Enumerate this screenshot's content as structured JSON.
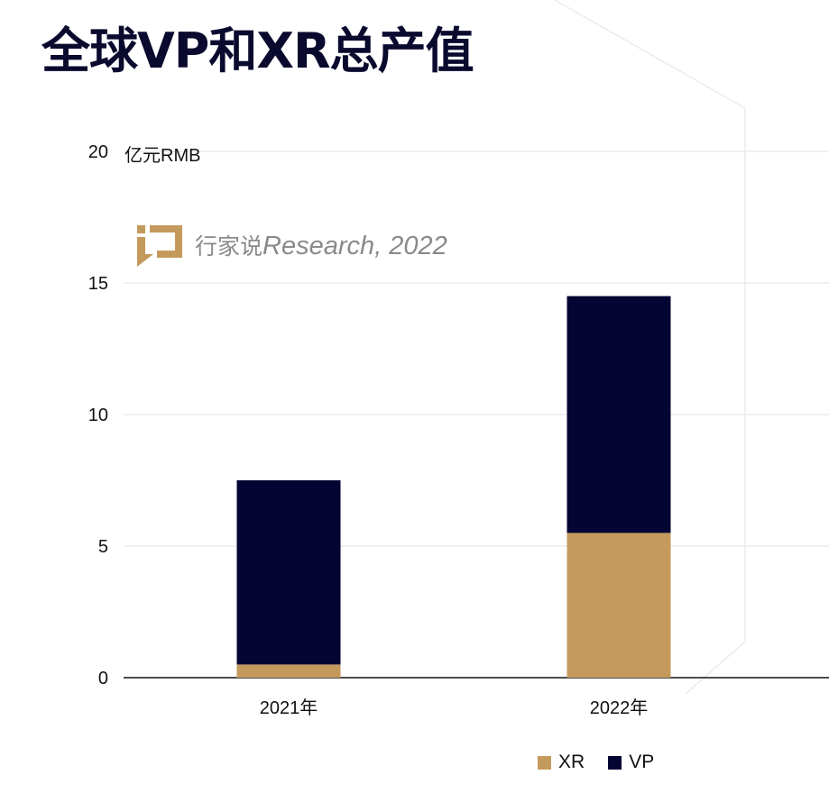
{
  "title": "全球VP和XR总产值",
  "watermark": {
    "cn": "行家说",
    "en": "Research, 2022"
  },
  "chart_data": {
    "type": "bar",
    "stacked": true,
    "title": "全球VP和XR总产值",
    "ylabel": "亿元RMB",
    "xlabel": "",
    "categories": [
      "2021年",
      "2022年"
    ],
    "series": [
      {
        "name": "XR",
        "values": [
          0.5,
          5.5
        ],
        "color": "#c49a5c"
      },
      {
        "name": "VP",
        "values": [
          7.0,
          9.0
        ],
        "color": "#050533"
      }
    ],
    "ylim": [
      0,
      20
    ],
    "yticks": [
      0,
      5,
      10,
      15,
      20
    ],
    "grid": true,
    "legend": "bottom-right"
  }
}
